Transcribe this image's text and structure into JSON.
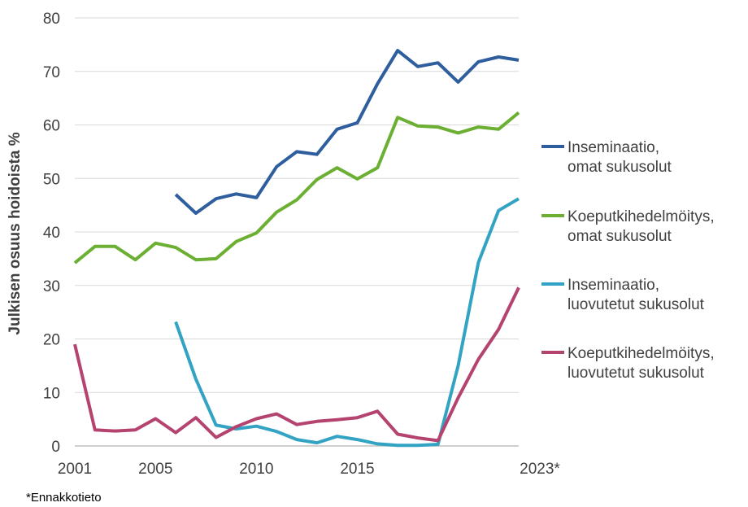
{
  "chart_data": {
    "type": "line",
    "ylabel": "Julkisen osuus hoidoista %",
    "xlabel": "",
    "ylim": [
      0,
      80
    ],
    "yticks": [
      0,
      10,
      20,
      30,
      40,
      50,
      60,
      70,
      80
    ],
    "xlim": [
      2001,
      2023
    ],
    "xtick_values": [
      2001,
      2005,
      2010,
      2015,
      2023
    ],
    "xtick_labels": [
      "2001",
      "2005",
      "2010",
      "2015",
      "2023*"
    ],
    "grid": "horizontal",
    "legend_position": "right",
    "footnote": "*Ennakkotieto",
    "series": [
      {
        "name": "Inseminaatio, omat sukusolut",
        "name_lines": [
          "Inseminaatio,",
          "omat sukusolut"
        ],
        "color": "#2E5E9E",
        "x": [
          2006,
          2007,
          2008,
          2009,
          2010,
          2011,
          2012,
          2013,
          2014,
          2015,
          2016,
          2017,
          2018,
          2019,
          2020,
          2021,
          2022,
          2023
        ],
        "y": [
          47,
          43.5,
          46.2,
          47.1,
          46.4,
          52.2,
          55,
          54.5,
          59.2,
          60.4,
          67.7,
          73.9,
          70.9,
          71.6,
          68,
          71.8,
          72.7,
          72.1
        ]
      },
      {
        "name": "Koeputkihedelmöitys, omat sukusolut",
        "name_lines": [
          "Koeputkihedelmöitys,",
          "omat sukusolut"
        ],
        "color": "#6BAF33",
        "x": [
          2001,
          2002,
          2003,
          2004,
          2005,
          2006,
          2007,
          2008,
          2009,
          2010,
          2011,
          2012,
          2013,
          2014,
          2015,
          2016,
          2017,
          2018,
          2019,
          2020,
          2021,
          2022,
          2023
        ],
        "y": [
          34.2,
          37.3,
          37.3,
          34.8,
          37.9,
          37.1,
          34.8,
          35,
          38.2,
          39.8,
          43.7,
          46,
          49.8,
          52,
          49.9,
          52,
          61.4,
          59.8,
          59.6,
          58.5,
          59.6,
          59.2,
          62.3
        ]
      },
      {
        "name": "Inseminaatio, luovutetut sukusolut",
        "name_lines": [
          "Inseminaatio,",
          "luovutetut sukusolut"
        ],
        "color": "#33A3C4",
        "x": [
          2006,
          2007,
          2008,
          2009,
          2010,
          2011,
          2012,
          2013,
          2014,
          2015,
          2016,
          2017,
          2018,
          2019,
          2020,
          2021,
          2022,
          2023
        ],
        "y": [
          23.2,
          12.5,
          3.9,
          3.2,
          3.7,
          2.7,
          1.2,
          0.6,
          1.8,
          1.2,
          0.4,
          0.1,
          0.1,
          0.3,
          15,
          34.3,
          44,
          46.2
        ]
      },
      {
        "name": "Koeputkihedelmöitys, luovutetut sukusolut",
        "name_lines": [
          "Koeputkihedelmöitys,",
          "luovutetut sukusolut"
        ],
        "color": "#B5436F",
        "x": [
          2001,
          2002,
          2003,
          2004,
          2005,
          2006,
          2007,
          2008,
          2009,
          2010,
          2011,
          2012,
          2013,
          2014,
          2015,
          2016,
          2017,
          2018,
          2019,
          2020,
          2021,
          2022,
          2023
        ],
        "y": [
          19,
          3,
          2.8,
          3,
          5.1,
          2.5,
          5.3,
          1.6,
          3.6,
          5.1,
          6,
          4,
          4.6,
          4.9,
          5.3,
          6.5,
          2.2,
          1.5,
          1,
          9,
          16.2,
          21.8,
          29.6
        ]
      }
    ]
  }
}
